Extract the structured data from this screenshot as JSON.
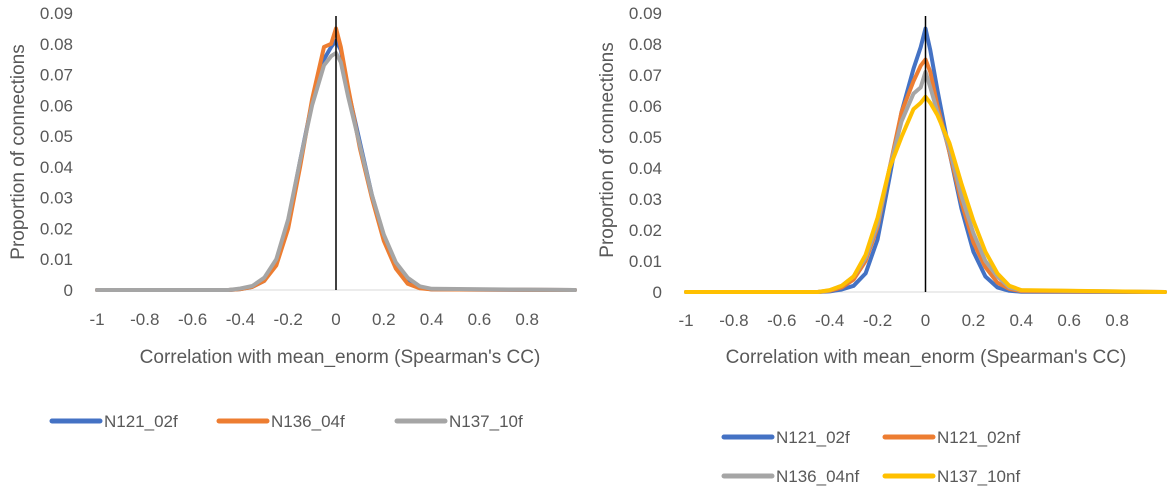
{
  "chart_data": [
    {
      "type": "line",
      "xlabel": "Correlation with mean_enorm (Spearman's CC)",
      "ylabel": "Proportion of connections",
      "xlim": [
        -1,
        1
      ],
      "ylim": [
        0,
        0.09
      ],
      "x_ticks": [
        "-1",
        "-0.8",
        "-0.6",
        "-0.4",
        "-0.2",
        "0",
        "0.2",
        "0.4",
        "0.6",
        "0.8"
      ],
      "y_ticks": [
        "0",
        "0.01",
        "0.02",
        "0.03",
        "0.04",
        "0.05",
        "0.06",
        "0.07",
        "0.08",
        "0.09"
      ],
      "x": [
        -1,
        -0.45,
        -0.4,
        -0.35,
        -0.3,
        -0.25,
        -0.2,
        -0.15,
        -0.1,
        -0.05,
        -0.02,
        0,
        0.02,
        0.05,
        0.1,
        0.15,
        0.2,
        0.25,
        0.3,
        0.35,
        0.4,
        1
      ],
      "series": [
        {
          "name": "N121_02f",
          "color": "#4472C4",
          "values": [
            0,
            0,
            0.0003,
            0.001,
            0.003,
            0.009,
            0.022,
            0.042,
            0.061,
            0.075,
            0.079,
            0.081,
            0.078,
            0.065,
            0.048,
            0.031,
            0.017,
            0.008,
            0.003,
            0.0008,
            0.0002,
            0
          ]
        },
        {
          "name": "N136_04f",
          "color": "#ED7D31",
          "values": [
            0,
            0,
            0.0003,
            0.001,
            0.003,
            0.008,
            0.02,
            0.04,
            0.062,
            0.079,
            0.08,
            0.085,
            0.079,
            0.066,
            0.046,
            0.03,
            0.016,
            0.007,
            0.002,
            0.0006,
            0.0002,
            0
          ]
        },
        {
          "name": "N137_10f",
          "color": "#A5A5A5",
          "values": [
            0,
            0,
            0.0005,
            0.0013,
            0.004,
            0.01,
            0.023,
            0.042,
            0.06,
            0.073,
            0.076,
            0.077,
            0.074,
            0.063,
            0.047,
            0.031,
            0.018,
            0.009,
            0.004,
            0.0012,
            0.0004,
            0
          ]
        }
      ],
      "legend": "bottom"
    },
    {
      "type": "line",
      "xlabel": "Correlation with mean_enorm (Spearman's CC)",
      "ylabel": "Proportion of connections",
      "xlim": [
        -1,
        1
      ],
      "ylim": [
        0,
        0.09
      ],
      "x_ticks": [
        "-1",
        "-0.8",
        "-0.6",
        "-0.4",
        "-0.2",
        "0",
        "0.2",
        "0.4",
        "0.6",
        "0.8"
      ],
      "y_ticks": [
        "0",
        "0.01",
        "0.02",
        "0.03",
        "0.04",
        "0.05",
        "0.06",
        "0.07",
        "0.08",
        "0.09"
      ],
      "x": [
        -1,
        -0.45,
        -0.4,
        -0.35,
        -0.3,
        -0.25,
        -0.2,
        -0.15,
        -0.1,
        -0.05,
        -0.02,
        0,
        0.02,
        0.05,
        0.1,
        0.15,
        0.2,
        0.25,
        0.3,
        0.35,
        0.4,
        1
      ],
      "series": [
        {
          "name": "N121_02f",
          "color": "#4472C4",
          "values": [
            0,
            0,
            0.0002,
            0.0008,
            0.002,
            0.006,
            0.017,
            0.037,
            0.058,
            0.072,
            0.079,
            0.085,
            0.078,
            0.065,
            0.045,
            0.027,
            0.013,
            0.005,
            0.0015,
            0.0004,
            0.0001,
            0
          ]
        },
        {
          "name": "N121_02nf",
          "color": "#ED7D31",
          "values": [
            0,
            0,
            0.0004,
            0.0015,
            0.004,
            0.01,
            0.021,
            0.04,
            0.058,
            0.068,
            0.073,
            0.075,
            0.071,
            0.06,
            0.045,
            0.029,
            0.016,
            0.008,
            0.003,
            0.001,
            0.0003,
            0
          ]
        },
        {
          "name": "N136_04nf",
          "color": "#A5A5A5",
          "values": [
            0,
            0,
            0.0005,
            0.002,
            0.005,
            0.011,
            0.022,
            0.04,
            0.055,
            0.064,
            0.066,
            0.071,
            0.066,
            0.058,
            0.046,
            0.031,
            0.019,
            0.01,
            0.005,
            0.0015,
            0.0005,
            0
          ]
        },
        {
          "name": "N137_10nf",
          "color": "#FFC000",
          "values": [
            0,
            0,
            0.0006,
            0.002,
            0.005,
            0.012,
            0.024,
            0.04,
            0.05,
            0.059,
            0.061,
            0.063,
            0.061,
            0.057,
            0.048,
            0.035,
            0.023,
            0.013,
            0.006,
            0.002,
            0.0006,
            0
          ]
        }
      ],
      "legend": "bottom"
    }
  ]
}
